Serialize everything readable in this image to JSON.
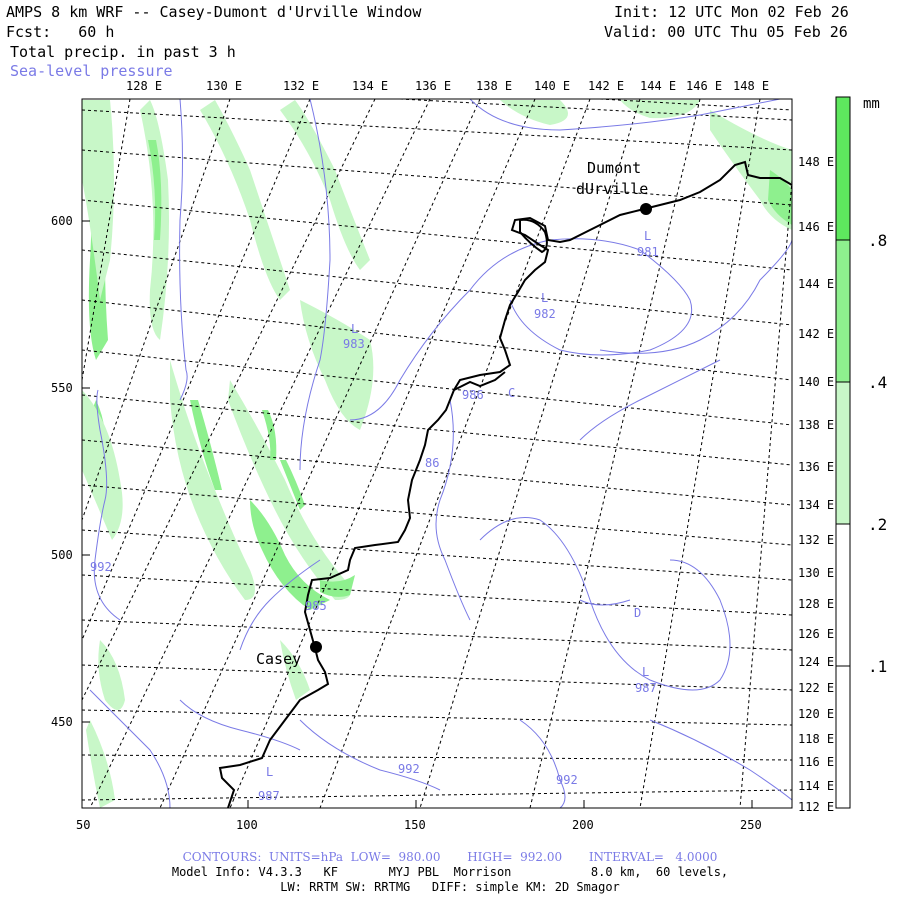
{
  "header": {
    "title": "AMPS 8 km WRF -- Casey-Dumont d'Urville Window",
    "init": "Init: 12 UTC Mon 02 Feb 26",
    "fcst": "Fcst:   60 h",
    "valid": "Valid: 00 UTC Thu 05 Feb 26",
    "field": "Total precip. in past 3 h",
    "overlay": "Sea-level pressure"
  },
  "lon_labels": [
    "128 E",
    "130 E",
    "132 E",
    "134 E",
    "136 E",
    "138 E",
    "140 E",
    "142 E",
    "144 E",
    "146 E",
    "148 E"
  ],
  "lat_labels": [
    "148 E",
    "146 E",
    "144 E",
    "142 E",
    "140 E",
    "138 E",
    "136 E",
    "134 E",
    "132 E",
    "130 E",
    "128 E",
    "126 E",
    "124 E",
    "122 E",
    "120 E",
    "118 E",
    "116 E",
    "114 E",
    "112 E"
  ],
  "y_axis": [
    "600",
    "550",
    "500",
    "450"
  ],
  "x_axis": [
    "50",
    "100",
    "150",
    "200",
    "250"
  ],
  "stations": [
    {
      "name": "Casey"
    },
    {
      "name_line1": "Dumont",
      "name_line2": "dUrville"
    }
  ],
  "pressure_labels": [
    "L",
    "981",
    "L",
    "982",
    "L",
    "983",
    "986",
    "C",
    "86",
    "992",
    "985",
    "L",
    "987",
    "D",
    "L",
    "987",
    "992",
    "992"
  ],
  "colorbar": {
    "unit": "mm",
    "levels": [
      ".8",
      ".4",
      ".2",
      ".1"
    ],
    "colors": [
      "#5ee85e",
      "#8ef08e",
      "#c8f7c8",
      "#ffffff"
    ]
  },
  "footer": {
    "contours": "CONTOURS:  UNITS=hPa  LOW=  980.00       HIGH=  992.00       INTERVAL=   4.0000",
    "model_info": "Model Info: V4.3.3   KF       MYJ PBL  Morrison           8.0 km,  60 levels,",
    "physics": "LW: RRTM SW: RRTMG   DIFF: simple KM: 2D Smagor"
  },
  "colors": {
    "contour": "#7a7ae6",
    "coast": "#000000",
    "precip_light": "#c8f7c8",
    "precip_mid": "#8ef08e",
    "precip_heavy": "#5ee85e"
  }
}
